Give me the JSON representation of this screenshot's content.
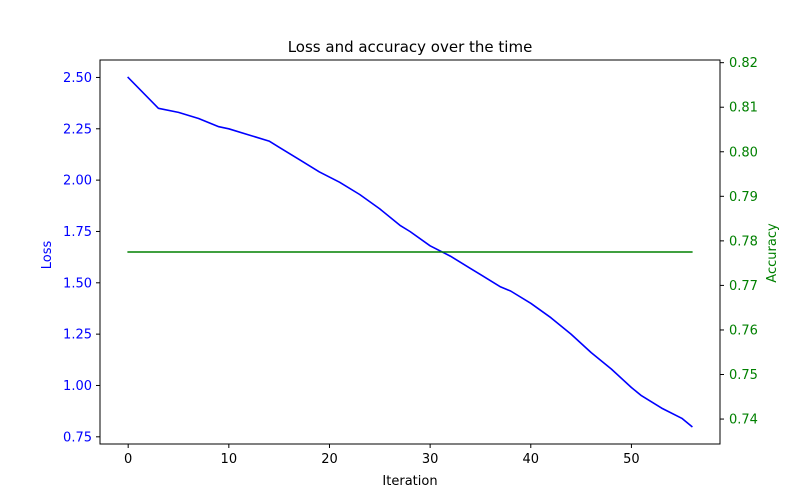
{
  "chart_data": {
    "type": "line",
    "title": "Loss and accuracy over the time",
    "xlabel": "Iteration",
    "ylabel_left": "Loss",
    "ylabel_right": "Accuracy",
    "xlim": [
      -2.8,
      58.8
    ],
    "ylim_left": [
      0.715,
      2.585
    ],
    "ylim_right": [
      0.7344,
      0.8206
    ],
    "x_ticks": [
      0,
      10,
      20,
      30,
      40,
      50
    ],
    "y_left_ticks": [
      0.75,
      1.0,
      1.25,
      1.5,
      1.75,
      2.0,
      2.25,
      2.5
    ],
    "y_right_ticks": [
      0.74,
      0.75,
      0.76,
      0.77,
      0.78,
      0.79,
      0.8,
      0.81,
      0.82
    ],
    "grid": false,
    "colors": {
      "loss": "#0000ff",
      "accuracy": "#008000",
      "axes": "#000000"
    },
    "series": [
      {
        "name": "Loss",
        "axis": "left",
        "color": "#0000ff",
        "x": [
          0,
          3,
          5,
          7,
          8,
          9,
          10,
          12,
          14,
          15,
          17,
          19,
          21,
          23,
          25,
          27,
          28,
          30,
          32,
          34,
          35,
          37,
          38,
          40,
          42,
          44,
          46,
          48,
          50,
          51,
          53,
          55,
          56
        ],
        "values": [
          2.5,
          2.35,
          2.33,
          2.3,
          2.28,
          2.26,
          2.25,
          2.22,
          2.19,
          2.16,
          2.1,
          2.04,
          1.99,
          1.93,
          1.86,
          1.78,
          1.75,
          1.68,
          1.63,
          1.57,
          1.54,
          1.48,
          1.46,
          1.4,
          1.33,
          1.25,
          1.16,
          1.08,
          0.99,
          0.95,
          0.89,
          0.84,
          0.8
        ]
      },
      {
        "name": "Accuracy",
        "axis": "right",
        "color": "#008000",
        "x": [
          0,
          56
        ],
        "values": [
          0.7775,
          0.7775
        ]
      }
    ]
  }
}
